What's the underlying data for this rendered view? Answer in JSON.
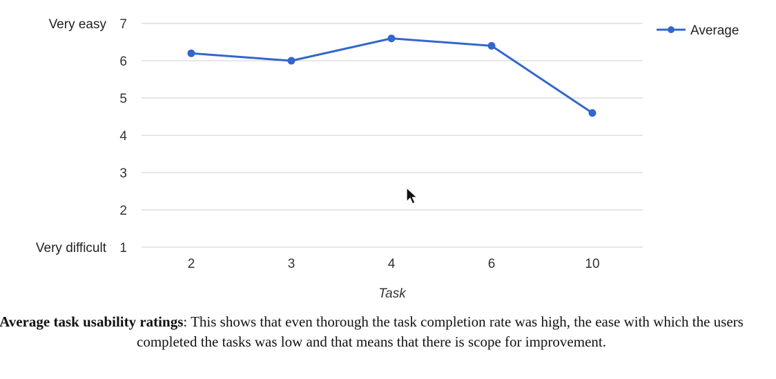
{
  "chart_data": {
    "type": "line",
    "categories": [
      "2",
      "3",
      "4",
      "6",
      "10"
    ],
    "series": [
      {
        "name": "Average",
        "values": [
          6.2,
          6.0,
          6.6,
          6.4,
          4.6
        ],
        "color": "#3366cc"
      }
    ],
    "xlabel": "Task",
    "ylabel": "",
    "ylim": [
      1,
      7
    ],
    "yticks": [
      1,
      2,
      3,
      4,
      5,
      6,
      7
    ],
    "ytick_labels": {
      "1": "Very difficult",
      "7": "Very easy"
    },
    "grid": true,
    "legend_position": "top-right",
    "gridline_color": "#cccccc"
  },
  "caption": {
    "bold": "Average task usability ratings",
    "text": ": This shows that even thorough the task completion rate was high, the ease with which the users completed the tasks was low and that means that there is scope for improvement."
  },
  "cursor": {
    "icon": "mouse-pointer-icon"
  }
}
